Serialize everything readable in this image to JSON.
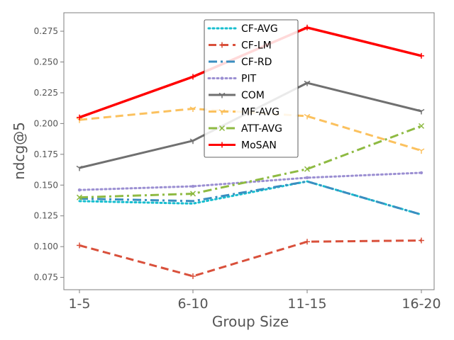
{
  "chart_data": {
    "type": "line",
    "title": "",
    "xlabel": "Group Size",
    "ylabel": "ndcg@5",
    "categories": [
      "1-5",
      "6-10",
      "11-15",
      "16-20"
    ],
    "ylim": [
      0.065,
      0.29
    ],
    "yticks": [
      "0.075",
      "0.100",
      "0.125",
      "0.150",
      "0.175",
      "0.200",
      "0.225",
      "0.250",
      "0.275"
    ],
    "legend_position": "top-center",
    "series": [
      {
        "name": "CF-AVG",
        "color": "#17becf",
        "style": "dotted",
        "marker": "none",
        "values": [
          0.137,
          0.135,
          0.153,
          0.126
        ]
      },
      {
        "name": "CF-LM",
        "color": "#d9503b",
        "style": "dashed",
        "marker": "plus",
        "values": [
          0.101,
          0.076,
          0.104,
          0.105
        ]
      },
      {
        "name": "CF-RD",
        "color": "#3a8ec0",
        "style": "dashdot",
        "marker": "none",
        "values": [
          0.139,
          0.137,
          0.153,
          0.126
        ]
      },
      {
        "name": "PIT",
        "color": "#9b8fd2",
        "style": "dotted",
        "marker": "dot",
        "values": [
          0.146,
          0.149,
          0.156,
          0.16
        ]
      },
      {
        "name": "COM",
        "color": "#707070",
        "style": "solid",
        "marker": "tri",
        "values": [
          0.164,
          0.186,
          0.233,
          0.21
        ]
      },
      {
        "name": "MF-AVG",
        "color": "#fbc15e",
        "style": "dashed",
        "marker": "tri",
        "values": [
          0.203,
          0.212,
          0.206,
          0.178
        ]
      },
      {
        "name": "ATT-AVG",
        "color": "#8eba42",
        "style": "dashdot",
        "marker": "x",
        "values": [
          0.14,
          0.143,
          0.163,
          0.198
        ]
      },
      {
        "name": "MoSAN",
        "color": "#ff0000",
        "style": "solid",
        "marker": "plus",
        "values": [
          0.205,
          0.238,
          0.278,
          0.255
        ]
      }
    ]
  }
}
